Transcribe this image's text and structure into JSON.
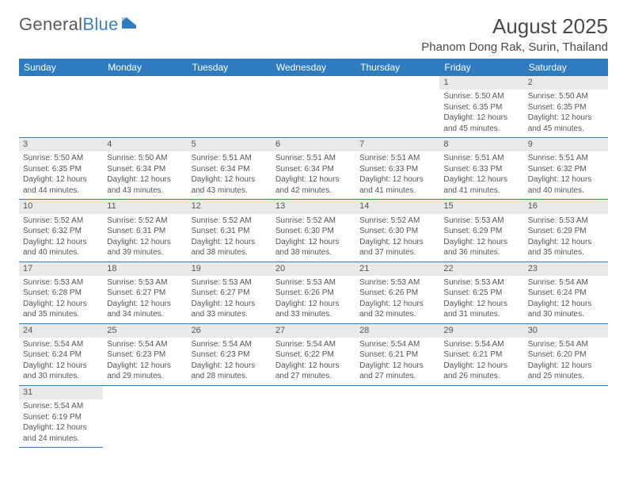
{
  "brand": {
    "part1": "General",
    "part2": "Blue"
  },
  "title": "August 2025",
  "subtitle": "Phanom Dong Rak, Surin, Thailand",
  "header_bg": "#2e7bbf",
  "daynum_bg": "#e9e9e9",
  "days": [
    "Sunday",
    "Monday",
    "Tuesday",
    "Wednesday",
    "Thursday",
    "Friday",
    "Saturday"
  ],
  "weeks": [
    [
      null,
      null,
      null,
      null,
      null,
      {
        "n": "1",
        "sr": "5:50 AM",
        "ss": "6:35 PM",
        "dl": "12 hours and 45 minutes."
      },
      {
        "n": "2",
        "sr": "5:50 AM",
        "ss": "6:35 PM",
        "dl": "12 hours and 45 minutes."
      }
    ],
    [
      {
        "n": "3",
        "sr": "5:50 AM",
        "ss": "6:35 PM",
        "dl": "12 hours and 44 minutes."
      },
      {
        "n": "4",
        "sr": "5:50 AM",
        "ss": "6:34 PM",
        "dl": "12 hours and 43 minutes."
      },
      {
        "n": "5",
        "sr": "5:51 AM",
        "ss": "6:34 PM",
        "dl": "12 hours and 43 minutes."
      },
      {
        "n": "6",
        "sr": "5:51 AM",
        "ss": "6:34 PM",
        "dl": "12 hours and 42 minutes."
      },
      {
        "n": "7",
        "sr": "5:51 AM",
        "ss": "6:33 PM",
        "dl": "12 hours and 41 minutes."
      },
      {
        "n": "8",
        "sr": "5:51 AM",
        "ss": "6:33 PM",
        "dl": "12 hours and 41 minutes."
      },
      {
        "n": "9",
        "sr": "5:51 AM",
        "ss": "6:32 PM",
        "dl": "12 hours and 40 minutes."
      }
    ],
    [
      {
        "n": "10",
        "sr": "5:52 AM",
        "ss": "6:32 PM",
        "dl": "12 hours and 40 minutes."
      },
      {
        "n": "11",
        "sr": "5:52 AM",
        "ss": "6:31 PM",
        "dl": "12 hours and 39 minutes."
      },
      {
        "n": "12",
        "sr": "5:52 AM",
        "ss": "6:31 PM",
        "dl": "12 hours and 38 minutes."
      },
      {
        "n": "13",
        "sr": "5:52 AM",
        "ss": "6:30 PM",
        "dl": "12 hours and 38 minutes."
      },
      {
        "n": "14",
        "sr": "5:52 AM",
        "ss": "6:30 PM",
        "dl": "12 hours and 37 minutes."
      },
      {
        "n": "15",
        "sr": "5:53 AM",
        "ss": "6:29 PM",
        "dl": "12 hours and 36 minutes."
      },
      {
        "n": "16",
        "sr": "5:53 AM",
        "ss": "6:29 PM",
        "dl": "12 hours and 35 minutes."
      }
    ],
    [
      {
        "n": "17",
        "sr": "5:53 AM",
        "ss": "6:28 PM",
        "dl": "12 hours and 35 minutes."
      },
      {
        "n": "18",
        "sr": "5:53 AM",
        "ss": "6:27 PM",
        "dl": "12 hours and 34 minutes."
      },
      {
        "n": "19",
        "sr": "5:53 AM",
        "ss": "6:27 PM",
        "dl": "12 hours and 33 minutes."
      },
      {
        "n": "20",
        "sr": "5:53 AM",
        "ss": "6:26 PM",
        "dl": "12 hours and 33 minutes."
      },
      {
        "n": "21",
        "sr": "5:53 AM",
        "ss": "6:26 PM",
        "dl": "12 hours and 32 minutes."
      },
      {
        "n": "22",
        "sr": "5:53 AM",
        "ss": "6:25 PM",
        "dl": "12 hours and 31 minutes."
      },
      {
        "n": "23",
        "sr": "5:54 AM",
        "ss": "6:24 PM",
        "dl": "12 hours and 30 minutes."
      }
    ],
    [
      {
        "n": "24",
        "sr": "5:54 AM",
        "ss": "6:24 PM",
        "dl": "12 hours and 30 minutes."
      },
      {
        "n": "25",
        "sr": "5:54 AM",
        "ss": "6:23 PM",
        "dl": "12 hours and 29 minutes."
      },
      {
        "n": "26",
        "sr": "5:54 AM",
        "ss": "6:23 PM",
        "dl": "12 hours and 28 minutes."
      },
      {
        "n": "27",
        "sr": "5:54 AM",
        "ss": "6:22 PM",
        "dl": "12 hours and 27 minutes."
      },
      {
        "n": "28",
        "sr": "5:54 AM",
        "ss": "6:21 PM",
        "dl": "12 hours and 27 minutes."
      },
      {
        "n": "29",
        "sr": "5:54 AM",
        "ss": "6:21 PM",
        "dl": "12 hours and 26 minutes."
      },
      {
        "n": "30",
        "sr": "5:54 AM",
        "ss": "6:20 PM",
        "dl": "12 hours and 25 minutes."
      }
    ],
    [
      {
        "n": "31",
        "sr": "5:54 AM",
        "ss": "6:19 PM",
        "dl": "12 hours and 24 minutes."
      },
      null,
      null,
      null,
      null,
      null,
      null
    ]
  ],
  "labels": {
    "sunrise": "Sunrise:",
    "sunset": "Sunset:",
    "daylight": "Daylight:"
  }
}
